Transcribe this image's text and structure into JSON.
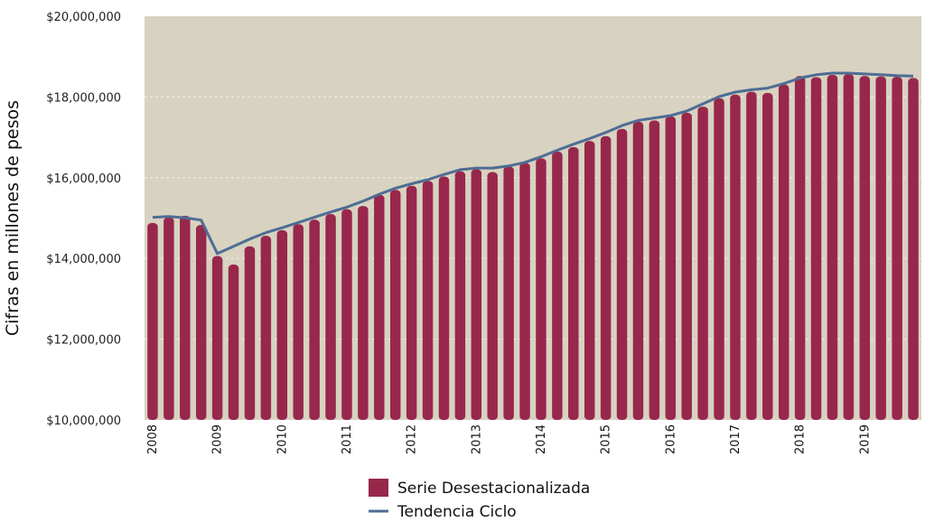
{
  "chart_data": {
    "type": "bar",
    "title": "",
    "xlabel": "",
    "ylabel": "Cifras en millones de pesos",
    "ylim": [
      10000000,
      20000000
    ],
    "yticks": [
      10000000,
      12000000,
      14000000,
      16000000,
      18000000,
      20000000
    ],
    "ytick_labels": [
      "$10,000,000",
      "$12,000,000",
      "$14,000,000",
      "$16,000,000",
      "$18,000,000",
      "$20,000,000"
    ],
    "year_labels": [
      "2008",
      "2009",
      "2010",
      "2011",
      "2012",
      "2013",
      "2014",
      "2015",
      "2016",
      "2017",
      "2018",
      "2019"
    ],
    "quarters_per_year": 4,
    "grid": "horizontal",
    "legend_position": "bottom",
    "colors": {
      "plot_background": "#d8d2c0",
      "bars": "#98274c",
      "line": "#4e6d94",
      "grid": "#f2efe6"
    },
    "series": [
      {
        "name": "Serie Desestacionalizada",
        "kind": "bar",
        "values": [
          14880000,
          15020000,
          15060000,
          14830000,
          14060000,
          13850000,
          14300000,
          14560000,
          14700000,
          14850000,
          14960000,
          15100000,
          15220000,
          15300000,
          15580000,
          15700000,
          15800000,
          15920000,
          16030000,
          16160000,
          16210000,
          16140000,
          16280000,
          16370000,
          16480000,
          16650000,
          16760000,
          16910000,
          17030000,
          17210000,
          17390000,
          17420000,
          17520000,
          17610000,
          17760000,
          17970000,
          18060000,
          18130000,
          18100000,
          18310000,
          18520000,
          18490000,
          18550000,
          18570000,
          18520000,
          18510000,
          18500000,
          18470000
        ]
      },
      {
        "name": "Tendencia Ciclo",
        "kind": "line",
        "values": [
          15020000,
          15040000,
          15010000,
          14950000,
          14120000,
          14300000,
          14480000,
          14640000,
          14760000,
          14890000,
          15020000,
          15150000,
          15270000,
          15420000,
          15590000,
          15740000,
          15850000,
          15950000,
          16080000,
          16200000,
          16240000,
          16240000,
          16290000,
          16380000,
          16520000,
          16680000,
          16830000,
          16970000,
          17120000,
          17290000,
          17420000,
          17480000,
          17540000,
          17650000,
          17830000,
          18010000,
          18120000,
          18180000,
          18220000,
          18330000,
          18470000,
          18550000,
          18590000,
          18590000,
          18570000,
          18550000,
          18530000,
          18520000
        ]
      }
    ]
  }
}
